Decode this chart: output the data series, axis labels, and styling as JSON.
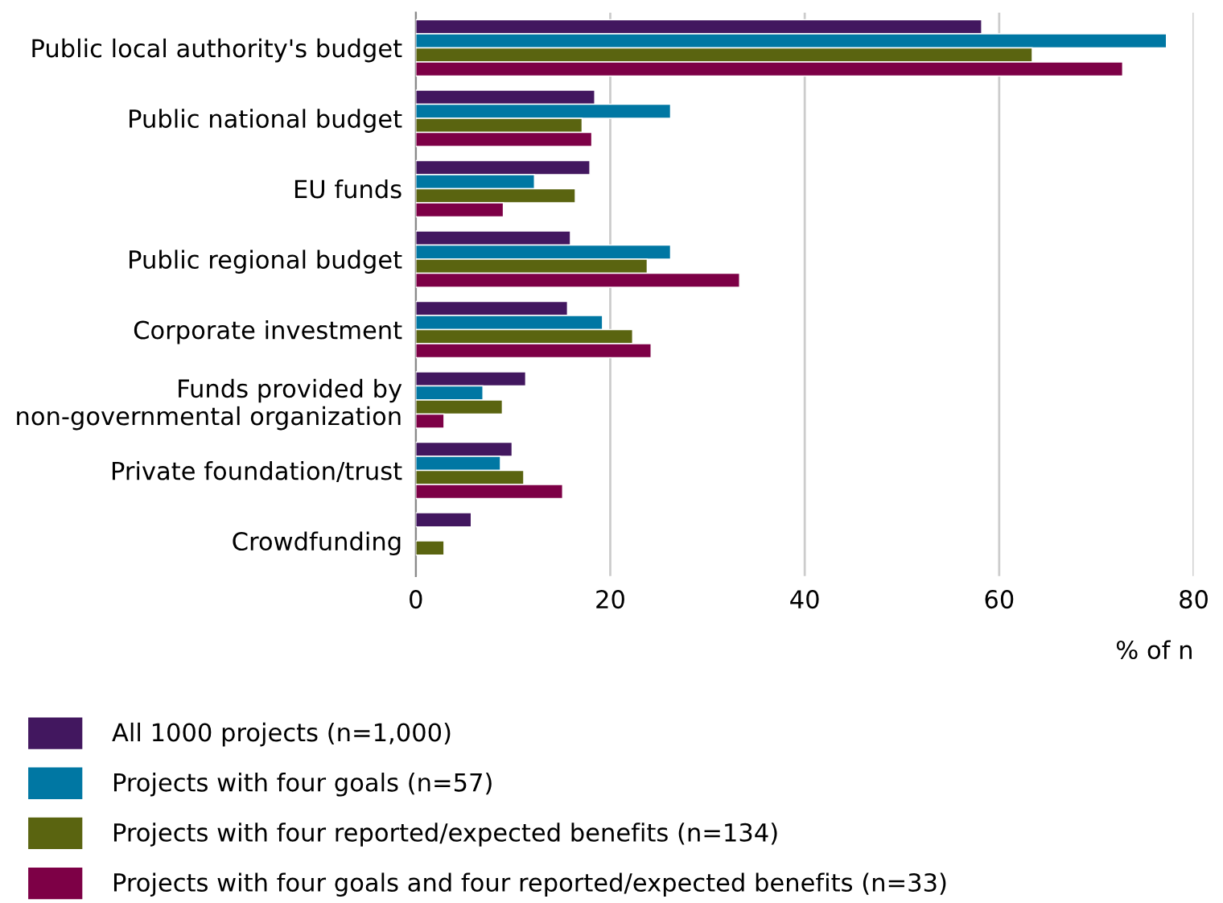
{
  "chart_data": {
    "type": "bar",
    "orientation": "horizontal",
    "categories": [
      "Public local authority's budget",
      "Public national budget",
      "EU funds",
      "Public regional budget",
      "Corporate investment",
      "Funds provided by\nnon-governmental organization",
      "Private foundation/trust",
      "Crowdfunding"
    ],
    "series": [
      {
        "name": "All 1000 projects (n=1,000)",
        "color": "#42175f",
        "values": [
          58.2,
          18.4,
          17.9,
          15.9,
          15.6,
          11.3,
          9.9,
          5.7
        ]
      },
      {
        "name": "Projects with four goals (n=57)",
        "color": "#0077a3",
        "values": [
          77.2,
          26.2,
          12.2,
          26.2,
          19.2,
          6.9,
          8.7,
          null
        ]
      },
      {
        "name": "Projects with four reported/expected benefits (n=134)",
        "color": "#5a6410",
        "values": [
          63.4,
          17.1,
          16.4,
          23.8,
          22.3,
          8.9,
          11.1,
          2.9
        ]
      },
      {
        "name": "Projects with four goals and four reported/expected benefits (n=33)",
        "color": "#7d0046",
        "values": [
          72.7,
          18.1,
          9.0,
          33.3,
          24.2,
          2.9,
          15.1,
          null
        ]
      }
    ],
    "xlabel": "% of n",
    "xlim": [
      0,
      80
    ],
    "xticks": [
      0,
      20,
      40,
      60,
      80
    ],
    "grid": "x",
    "legend": "bottom"
  }
}
